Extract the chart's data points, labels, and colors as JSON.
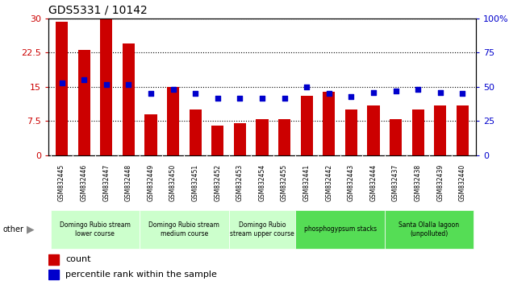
{
  "title": "GDS5331 / 10142",
  "samples": [
    "GSM832445",
    "GSM832446",
    "GSM832447",
    "GSM832448",
    "GSM832449",
    "GSM832450",
    "GSM832451",
    "GSM832452",
    "GSM832453",
    "GSM832454",
    "GSM832455",
    "GSM832441",
    "GSM832442",
    "GSM832443",
    "GSM832444",
    "GSM832437",
    "GSM832438",
    "GSM832439",
    "GSM832440"
  ],
  "counts": [
    29.3,
    23.2,
    30.0,
    24.5,
    9.0,
    15.0,
    10.0,
    6.5,
    7.0,
    8.0,
    8.0,
    13.0,
    14.0,
    10.0,
    11.0,
    8.0,
    10.0,
    11.0,
    11.0
  ],
  "percentiles": [
    53,
    55,
    52,
    52,
    45,
    48,
    45,
    42,
    42,
    42,
    42,
    50,
    45,
    43,
    46,
    47,
    48,
    46,
    45
  ],
  "bar_color": "#cc0000",
  "dot_color": "#0000cc",
  "ylim_left": [
    0,
    30
  ],
  "ylim_right": [
    0,
    100
  ],
  "yticks_left": [
    0,
    7.5,
    15,
    22.5,
    30
  ],
  "yticks_right": [
    0,
    25,
    50,
    75,
    100
  ],
  "ytick_labels_left": [
    "0",
    "7.5",
    "15",
    "22.5",
    "30"
  ],
  "ytick_labels_right": [
    "0",
    "25",
    "50",
    "75",
    "100%"
  ],
  "groups": [
    {
      "label": "Domingo Rubio stream\nlower course",
      "start": 0,
      "end": 4,
      "color": "#ccffcc"
    },
    {
      "label": "Domingo Rubio stream\nmedium course",
      "start": 4,
      "end": 8,
      "color": "#ccffcc"
    },
    {
      "label": "Domingo Rubio\nstream upper course",
      "start": 8,
      "end": 11,
      "color": "#ccffcc"
    },
    {
      "label": "phosphogypsum stacks",
      "start": 11,
      "end": 15,
      "color": "#55dd55"
    },
    {
      "label": "Santa Olalla lagoon\n(unpolluted)",
      "start": 15,
      "end": 19,
      "color": "#55dd55"
    }
  ],
  "legend_count_label": "count",
  "legend_pct_label": "percentile rank within the sample",
  "other_label": "other",
  "xtick_bg": "#c8c8c8",
  "fig_bg": "#ffffff"
}
